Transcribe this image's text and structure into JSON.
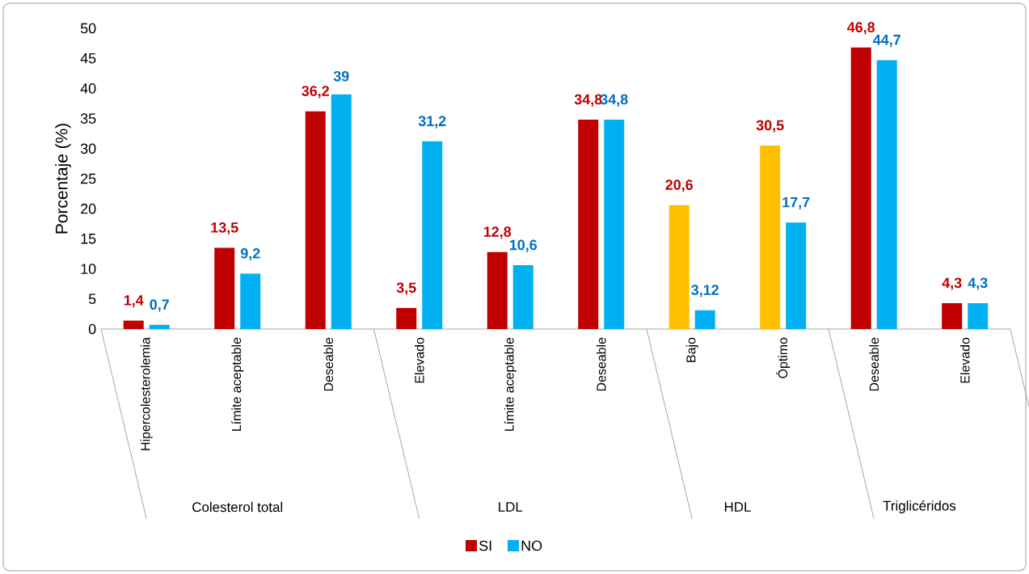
{
  "chart_data": {
    "type": "bar",
    "ylabel": "Porcentaje (%)",
    "categories": [
      "Hipercolesterolemia",
      "Límite aceptable",
      "Deseable",
      "Elevado",
      "Límite aceptable",
      "Deseable",
      "Bajo",
      "Óptimo",
      "Deseable",
      "Elevado"
    ],
    "annotations": [
      "Colesterol total",
      "LDL",
      "HDL",
      "Triglicéridos"
    ],
    "series": [
      {
        "name": "SI",
        "color": "#c00000",
        "colors": [
          "#c00000",
          "#c00000",
          "#c00000",
          "#c00000",
          "#c00000",
          "#c00000",
          "#ffc000",
          "#ffc000",
          "#c00000",
          "#c00000"
        ],
        "values": [
          1.4,
          13.5,
          36.2,
          3.5,
          12.8,
          34.8,
          20.6,
          30.5,
          46.8,
          4.3
        ],
        "value_labels": [
          "1,4",
          "13,5",
          "36,2",
          "3,5",
          "12,8",
          "34,8",
          "20,6",
          "30,5",
          "46,8",
          "4,3"
        ]
      },
      {
        "name": "NO",
        "color": "#00b0f0",
        "values": [
          0.7,
          9.2,
          39,
          31.2,
          10.6,
          34.8,
          3.12,
          17.7,
          44.7,
          4.3
        ],
        "value_labels": [
          "0,7",
          "9,2",
          "39",
          "31,2",
          "10,6",
          "34,8",
          "3,12",
          "17,7",
          "44,7",
          "4,3"
        ]
      }
    ],
    "ylim": [
      0,
      50
    ],
    "yticks": [
      0,
      5,
      10,
      15,
      20,
      25,
      30,
      35,
      40,
      45,
      50
    ],
    "grid": false,
    "legend": "bottom"
  }
}
